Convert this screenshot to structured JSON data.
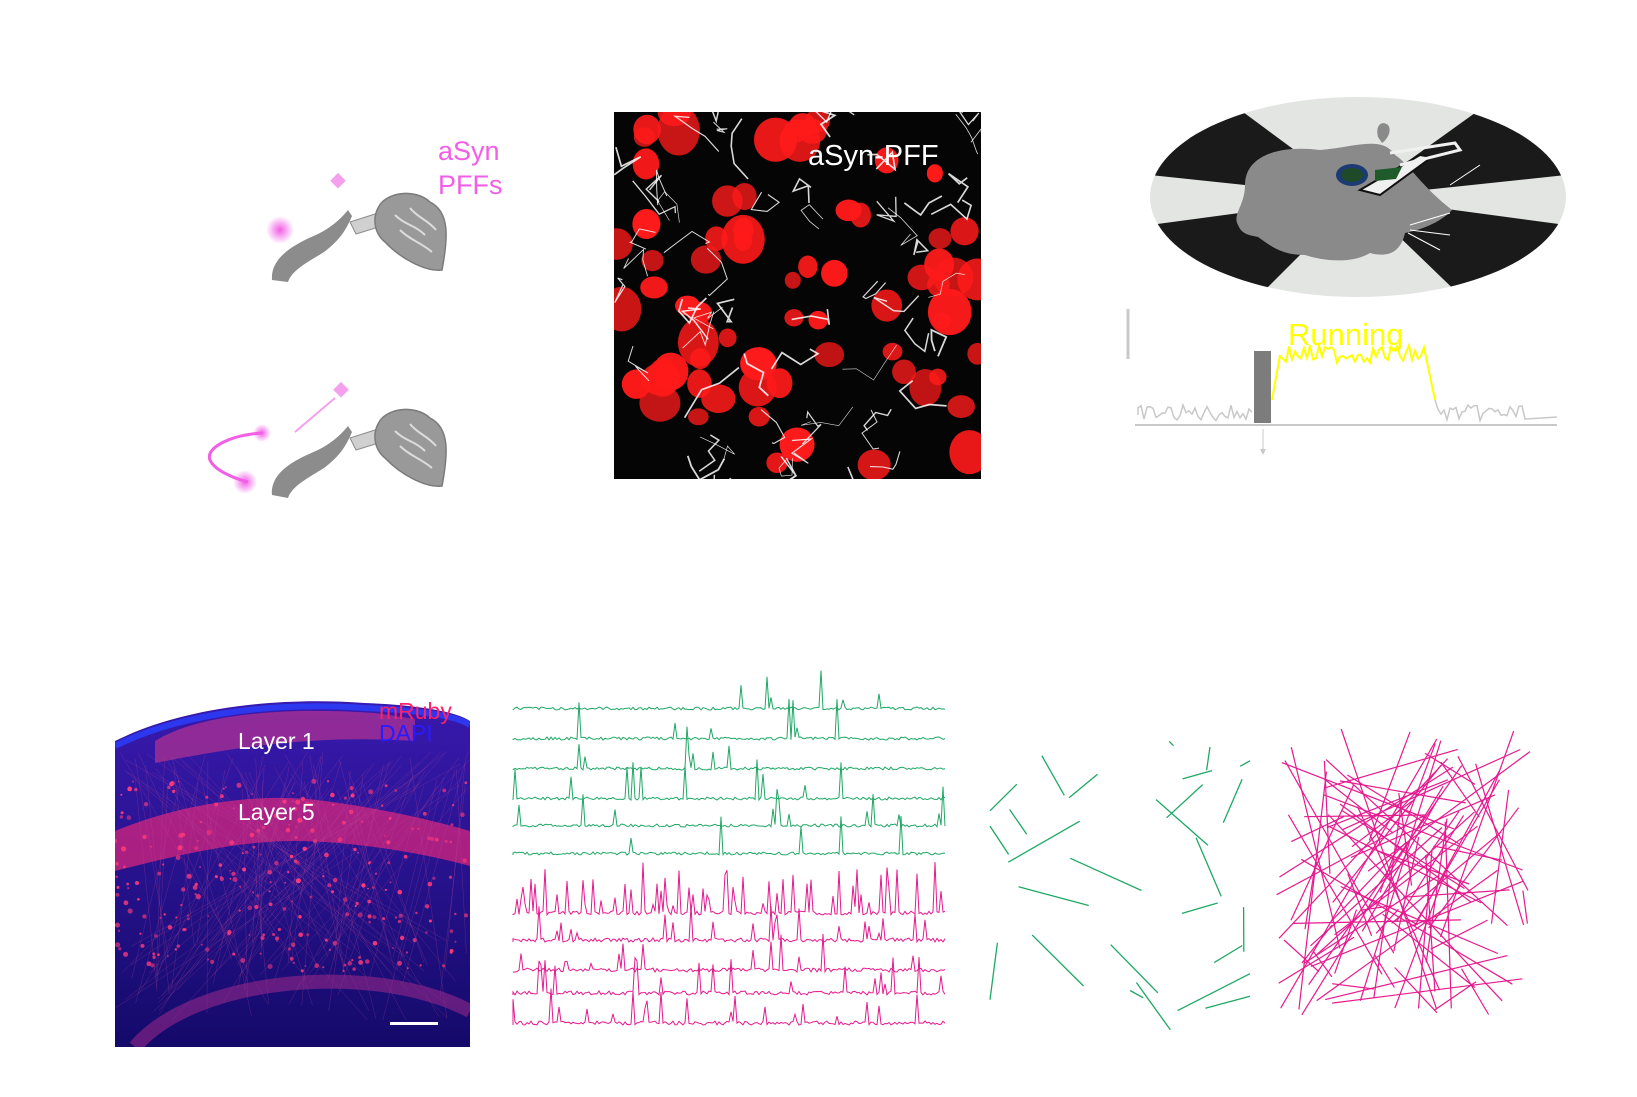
{
  "panel_injection": {
    "label_line1": "aSyn",
    "label_line2": "PFFs",
    "accent_color": "#f25ee6"
  },
  "panel_micrograph": {
    "label": "aSyn-PFF",
    "cell_color": "#ff1a1a"
  },
  "panel_behavior": {
    "running_label": "Running",
    "running_color": "#ffff00",
    "trace_color": "#c8c8c8"
  },
  "panel_histology": {
    "legend_mruby": "mRuby",
    "legend_dapi": "DAPI",
    "layer1": "Layer 1",
    "layer5": "Layer 5",
    "mruby_color": "#ff1f6a",
    "dapi_color": "#2a1bff"
  },
  "panel_traces": {
    "green_color": "#1fa865",
    "magenta_color": "#e6198f",
    "green_trace_count": 5,
    "magenta_trace_count": 5
  },
  "panel_networks": {
    "green_color": "#1fa865",
    "magenta_color": "#e6198f"
  }
}
